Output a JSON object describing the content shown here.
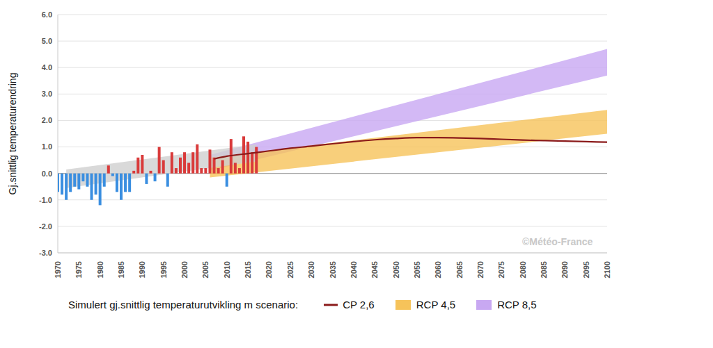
{
  "chart_data": {
    "type": "composed",
    "ylabel": "Gj.snittlig temperaturendring",
    "annotations": [
      "Simulert gj.snittlig temperaturutvikling m scenario:",
      "©Météo-France"
    ],
    "legend": "bottom",
    "grid": true,
    "xlim": [
      1970,
      2100
    ],
    "xticks": [
      1970,
      1975,
      1980,
      1985,
      1990,
      1995,
      2000,
      2005,
      2010,
      2015,
      2020,
      2025,
      2030,
      2035,
      2040,
      2045,
      2050,
      2055,
      2060,
      2065,
      2070,
      2075,
      2080,
      2085,
      2090,
      2095,
      2100
    ],
    "ylim": [
      -3,
      6
    ],
    "yticks": [
      {
        "value": -3,
        "label": "-3.0"
      },
      {
        "value": -2,
        "label": "-2.0"
      },
      {
        "value": -1,
        "label": "-1.0"
      },
      {
        "value": 0,
        "label": "0.0"
      },
      {
        "value": 1,
        "label": "1.0"
      },
      {
        "value": 2,
        "label": "2.0"
      },
      {
        "value": 3,
        "label": "3.0"
      },
      {
        "value": 4,
        "label": "4.0"
      },
      {
        "value": 5,
        "label": "5.0"
      },
      {
        "value": 6,
        "label": "6.0"
      }
    ],
    "series": [
      {
        "type": "bar",
        "x": [
          1970,
          1971,
          1972,
          1973,
          1974,
          1975,
          1976,
          1977,
          1978,
          1979,
          1980,
          1981,
          1982,
          1983,
          1984,
          1985,
          1986,
          1987,
          1988,
          1989,
          1990,
          1991,
          1992,
          1993,
          1994,
          1995,
          1996,
          1997,
          1998,
          1999,
          2000,
          2001,
          2002,
          2003,
          2004,
          2005,
          2006,
          2007,
          2008,
          2009,
          2010,
          2011,
          2012,
          2013,
          2014,
          2015,
          2016,
          2017
        ],
        "values": [
          -0.7,
          -0.8,
          -1.0,
          -0.7,
          -0.5,
          -0.6,
          -0.3,
          -0.5,
          -1.0,
          -0.8,
          -1.2,
          -0.5,
          0.3,
          -0.1,
          -0.7,
          -1.0,
          -0.7,
          -0.7,
          0.1,
          0.6,
          0.7,
          -0.4,
          0.1,
          -0.3,
          1.0,
          0.5,
          -0.5,
          0.8,
          0.2,
          0.6,
          0.8,
          0.4,
          0.8,
          1.1,
          0.2,
          0.2,
          0.9,
          0.6,
          0.2,
          0.5,
          -0.5,
          1.3,
          0.4,
          0.2,
          1.4,
          1.2,
          0.8,
          1.0
        ],
        "colors": [
          "#3a8ee0",
          "#3a8ee0",
          "#3a8ee0",
          "#3a8ee0",
          "#3a8ee0",
          "#3a8ee0",
          "#3a8ee0",
          "#3a8ee0",
          "#3a8ee0",
          "#3a8ee0",
          "#3a8ee0",
          "#3a8ee0",
          "#d93a3a",
          "#3a8ee0",
          "#3a8ee0",
          "#3a8ee0",
          "#3a8ee0",
          "#3a8ee0",
          "#d93a3a",
          "#d93a3a",
          "#d93a3a",
          "#3a8ee0",
          "#d93a3a",
          "#3a8ee0",
          "#d93a3a",
          "#d93a3a",
          "#3a8ee0",
          "#d93a3a",
          "#d93a3a",
          "#d93a3a",
          "#d93a3a",
          "#d93a3a",
          "#d93a3a",
          "#d93a3a",
          "#d93a3a",
          "#d93a3a",
          "#d93a3a",
          "#d93a3a",
          "#d93a3a",
          "#d93a3a",
          "#3a8ee0",
          "#d93a3a",
          "#d93a3a",
          "#d93a3a",
          "#d93a3a",
          "#d93a3a",
          "#d93a3a",
          "#d93a3a"
        ]
      },
      {
        "type": "band",
        "x": [
          1972,
          2017
        ],
        "low": [
          -0.55,
          0.45
        ],
        "high": [
          0.15,
          1.1
        ],
        "color": "#cfcfcf"
      },
      {
        "name": "CP 2,6",
        "type": "line",
        "x": [
          2007,
          2010,
          2015,
          2020,
          2025,
          2030,
          2035,
          2040,
          2045,
          2050,
          2055,
          2060,
          2065,
          2070,
          2075,
          2080,
          2085,
          2090,
          2095,
          2100
        ],
        "values": [
          0.55,
          0.65,
          0.75,
          0.85,
          0.95,
          1.03,
          1.12,
          1.2,
          1.27,
          1.32,
          1.35,
          1.35,
          1.34,
          1.32,
          1.29,
          1.26,
          1.24,
          1.22,
          1.2,
          1.18
        ],
        "color": "#8b1a1a"
      },
      {
        "name": "RCP 4,5",
        "type": "band",
        "x": [
          2006,
          2100
        ],
        "low": [
          -0.15,
          1.5
        ],
        "high": [
          0.6,
          2.4
        ],
        "color": "#f6c35a"
      },
      {
        "name": "RCP 8,5",
        "type": "band",
        "x": [
          2006,
          2100
        ],
        "low": [
          0.1,
          3.7
        ],
        "high": [
          0.7,
          4.7
        ],
        "color": "#c8a8f2"
      }
    ]
  }
}
